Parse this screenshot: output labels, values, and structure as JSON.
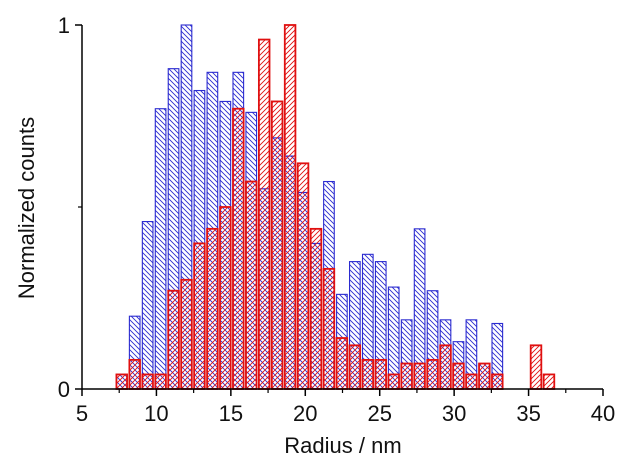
{
  "chart_data": {
    "type": "bar",
    "title": "",
    "xlabel": "Radius / nm",
    "ylabel": "Normalized counts",
    "xlim": [
      5,
      40
    ],
    "ylim": [
      0,
      1
    ],
    "x_ticks": [
      5,
      10,
      15,
      20,
      25,
      30,
      35,
      40
    ],
    "y_ticks": [
      0,
      1
    ],
    "y_minor_ticks": [
      0.5
    ],
    "bin_width": 0.87,
    "grid": false,
    "legend": "none",
    "series": [
      {
        "color": "#2b2bd0",
        "hatch": "diagonal-down",
        "x": [
          7.67,
          8.54,
          9.41,
          10.28,
          11.15,
          12.02,
          12.89,
          13.76,
          14.63,
          15.5,
          16.37,
          17.24,
          18.11,
          18.98,
          19.85,
          20.72,
          21.59,
          22.46,
          23.33,
          24.2,
          25.07,
          25.94,
          26.81,
          27.68,
          28.55,
          29.42,
          30.29,
          31.16,
          32.03,
          32.9
        ],
        "values": [
          0.04,
          0.2,
          0.46,
          0.77,
          0.88,
          1.0,
          0.82,
          0.87,
          0.79,
          0.87,
          0.76,
          0.55,
          0.69,
          0.64,
          0.54,
          0.4,
          0.57,
          0.26,
          0.35,
          0.37,
          0.35,
          0.28,
          0.19,
          0.44,
          0.27,
          0.19,
          0.13,
          0.19,
          0.07,
          0.18
        ]
      },
      {
        "color": "#e01010",
        "hatch": "diagonal-up",
        "x": [
          7.67,
          8.54,
          9.41,
          10.28,
          11.15,
          12.02,
          12.89,
          13.76,
          14.63,
          15.5,
          16.37,
          17.24,
          18.11,
          18.98,
          19.85,
          20.72,
          21.59,
          22.46,
          23.33,
          24.2,
          25.07,
          25.94,
          26.81,
          27.68,
          28.55,
          29.42,
          30.29,
          31.16,
          32.03,
          32.9,
          35.5,
          36.37
        ],
        "values": [
          0.04,
          0.08,
          0.04,
          0.04,
          0.27,
          0.3,
          0.4,
          0.44,
          0.5,
          0.77,
          0.57,
          0.96,
          0.79,
          1.0,
          0.62,
          0.44,
          0.33,
          0.14,
          0.12,
          0.08,
          0.08,
          0.04,
          0.07,
          0.07,
          0.08,
          0.12,
          0.07,
          0.04,
          0.07,
          0.04,
          0.12,
          0.04
        ]
      }
    ]
  }
}
